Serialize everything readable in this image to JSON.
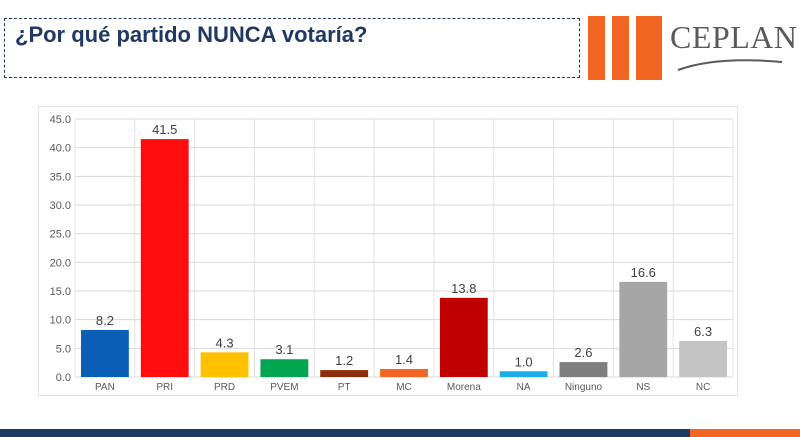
{
  "page": {
    "title": "¿Por qué partido NUNCA votaría?",
    "logo_text": "CEPLAN",
    "colors": {
      "title": "#1f3864",
      "logo_accent": "#f26522",
      "footer": "#1f3864"
    }
  },
  "chart_data": {
    "type": "bar",
    "title": "",
    "xlabel": "",
    "ylabel": "",
    "ylim": [
      0,
      45
    ],
    "yticks": [
      0,
      5,
      10,
      15,
      20,
      25,
      30,
      35,
      40,
      45
    ],
    "ytick_labels": [
      "0.0",
      "5.0",
      "10.0",
      "15.0",
      "20.0",
      "25.0",
      "30.0",
      "35.0",
      "40.0",
      "45.0"
    ],
    "grid": true,
    "legend": "none",
    "categories": [
      "PAN",
      "PRI",
      "PRD",
      "PVEM",
      "PT",
      "MC",
      "Morena",
      "NA",
      "Ninguno",
      "NS",
      "NC"
    ],
    "values": [
      8.2,
      41.5,
      4.3,
      3.1,
      1.2,
      1.4,
      13.8,
      1.0,
      2.6,
      16.6,
      6.3
    ],
    "value_labels": [
      "8.2",
      "41.5",
      "4.3",
      "3.1",
      "1.2",
      "1.4",
      "13.8",
      "1.0",
      "2.6",
      "16.6",
      "6.3"
    ],
    "colors": [
      "#0b5eb6",
      "#ff0d0d",
      "#ffc000",
      "#00a651",
      "#8b2e0a",
      "#f26522",
      "#c00000",
      "#1aaee6",
      "#7f7f7f",
      "#a6a6a6",
      "#c4c4c4"
    ]
  }
}
